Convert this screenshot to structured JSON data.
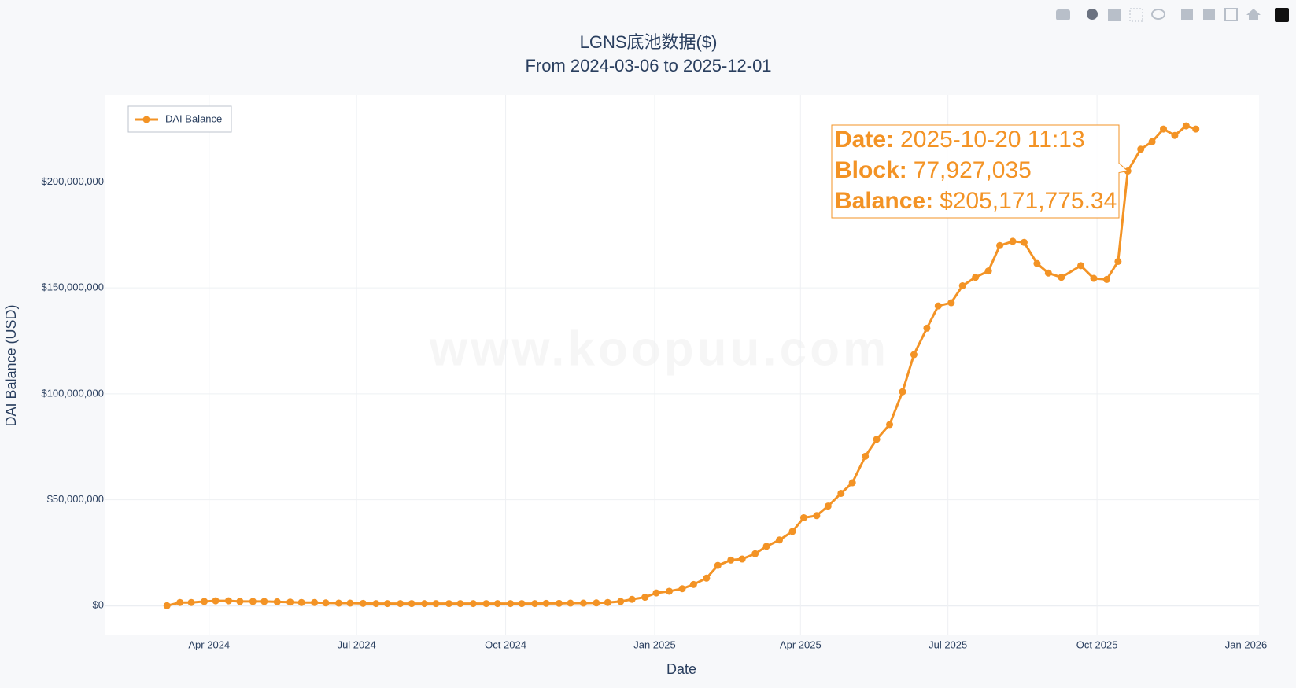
{
  "chart_data": {
    "type": "line",
    "title": "LGNS底池数据($)",
    "subtitle": "From 2024-03-06 to 2025-12-01",
    "x_label": "Date",
    "y_label": "DAI Balance (USD)",
    "watermark": "www.koopuu.com",
    "legend_position": "upper left",
    "grid": true,
    "x": [
      "2024-03-06",
      "2024-03-14",
      "2024-03-21",
      "2024-03-29",
      "2024-04-05",
      "2024-04-13",
      "2024-04-20",
      "2024-04-28",
      "2024-05-05",
      "2024-05-13",
      "2024-05-21",
      "2024-05-28",
      "2024-06-05",
      "2024-06-12",
      "2024-06-20",
      "2024-06-27",
      "2024-07-05",
      "2024-07-13",
      "2024-07-20",
      "2024-07-28",
      "2024-08-04",
      "2024-08-12",
      "2024-08-19",
      "2024-08-27",
      "2024-09-03",
      "2024-09-11",
      "2024-09-19",
      "2024-09-26",
      "2024-10-04",
      "2024-10-11",
      "2024-10-19",
      "2024-10-26",
      "2024-11-03",
      "2024-11-10",
      "2024-11-18",
      "2024-11-26",
      "2024-12-03",
      "2024-12-11",
      "2024-12-18",
      "2024-12-26",
      "2025-01-02",
      "2025-01-10",
      "2025-01-18",
      "2025-01-25",
      "2025-02-02",
      "2025-02-09",
      "2025-02-17",
      "2025-02-24",
      "2025-03-04",
      "2025-03-11",
      "2025-03-19",
      "2025-03-27",
      "2025-04-03",
      "2025-04-11",
      "2025-04-18",
      "2025-04-26",
      "2025-05-03",
      "2025-05-11",
      "2025-05-18",
      "2025-05-26",
      "2025-06-03",
      "2025-06-10",
      "2025-06-18",
      "2025-06-25",
      "2025-07-03",
      "2025-07-10",
      "2025-07-18",
      "2025-07-26",
      "2025-08-02",
      "2025-08-10",
      "2025-08-17",
      "2025-08-25",
      "2025-09-01",
      "2025-09-09",
      "2025-09-21",
      "2025-09-29",
      "2025-10-07",
      "2025-10-14",
      "2025-10-20",
      "2025-10-28",
      "2025-11-04",
      "2025-11-11",
      "2025-11-18",
      "2025-11-25",
      "2025-12-01"
    ],
    "series": [
      {
        "name": "DAI Balance",
        "color": "#f39325",
        "values": [
          0,
          1500000,
          1500000,
          2000000,
          2300000,
          2300000,
          2000000,
          2000000,
          2000000,
          1800000,
          1700000,
          1500000,
          1500000,
          1300000,
          1200000,
          1200000,
          1100000,
          1000000,
          1000000,
          1000000,
          1000000,
          1000000,
          1000000,
          1000000,
          1000000,
          1000000,
          1000000,
          1000000,
          1000000,
          1000000,
          1000000,
          1100000,
          1100000,
          1200000,
          1200000,
          1300000,
          1500000,
          2000000,
          3000000,
          4000000,
          6000000,
          6800000,
          8000000,
          10000000,
          13000000,
          19000000,
          21500000,
          22000000,
          24500000,
          28000000,
          31000000,
          35000000,
          41500000,
          42500000,
          47000000,
          53000000,
          58000000,
          70500000,
          78500000,
          85500000,
          101000000,
          118500000,
          131000000,
          141500000,
          143000000,
          151000000,
          155000000,
          158000000,
          170000000,
          172000000,
          171500000,
          161500000,
          157000000,
          155000000,
          160500000,
          154500000,
          154000000,
          162500000,
          205171775.34,
          215500000,
          219000000,
          225000000,
          222000000,
          226500000,
          225000000
        ]
      }
    ],
    "xlim": [
      "2024-01-28",
      "2026-01-09"
    ],
    "xticks": [
      {
        "value": "2024-04-01",
        "label": "Apr 2024"
      },
      {
        "value": "2024-07-01",
        "label": "Jul 2024"
      },
      {
        "value": "2024-10-01",
        "label": "Oct 2024"
      },
      {
        "value": "2025-01-01",
        "label": "Jan 2025"
      },
      {
        "value": "2025-04-01",
        "label": "Apr 2025"
      },
      {
        "value": "2025-07-01",
        "label": "Jul 2025"
      },
      {
        "value": "2025-10-01",
        "label": "Oct 2025"
      },
      {
        "value": "2026-01-01",
        "label": "Jan 2026"
      }
    ],
    "ylim": [
      -14000000,
      241000000
    ],
    "yticks": [
      {
        "value": 0,
        "label": "$0"
      },
      {
        "value": 50000000,
        "label": "$50,000,000"
      },
      {
        "value": 100000000,
        "label": "$100,000,000"
      },
      {
        "value": 150000000,
        "label": "$150,000,000"
      },
      {
        "value": 200000000,
        "label": "$200,000,000"
      }
    ],
    "hover": {
      "index": 78,
      "lines": [
        {
          "label": "Date:",
          "value": "2025-10-20 11:13"
        },
        {
          "label": "Block:",
          "value": "77,927,035"
        },
        {
          "label": "Balance:",
          "value": "$205,171,775.34"
        }
      ]
    }
  }
}
